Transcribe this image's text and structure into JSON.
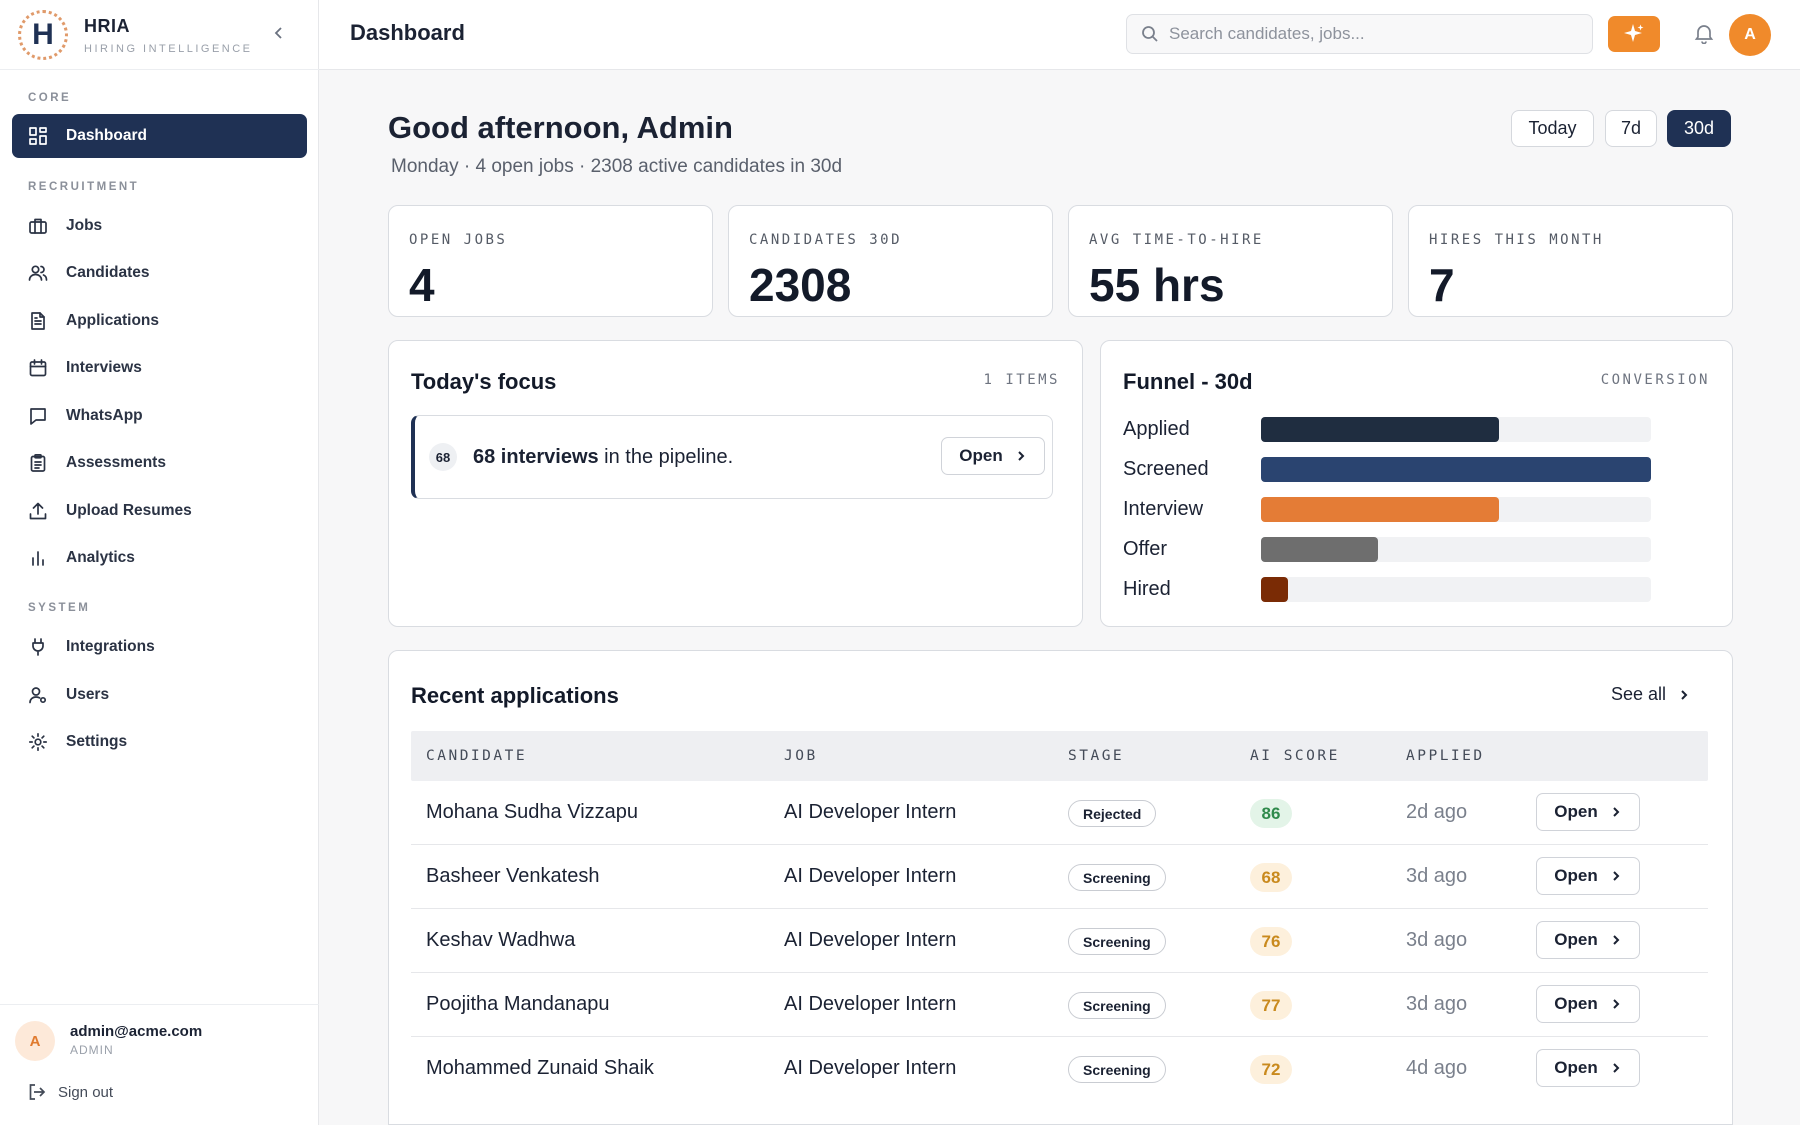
{
  "brand": {
    "logo_letter": "H",
    "title": "HRIA",
    "subtitle": "HIRING INTELLIGENCE"
  },
  "sidebar": {
    "sections": [
      {
        "label": "CORE",
        "items": [
          {
            "label": "Dashboard",
            "icon": "dashboard-icon",
            "active": true
          }
        ]
      },
      {
        "label": "RECRUITMENT",
        "items": [
          {
            "label": "Jobs",
            "icon": "briefcase-icon"
          },
          {
            "label": "Candidates",
            "icon": "users-icon"
          },
          {
            "label": "Applications",
            "icon": "file-icon"
          },
          {
            "label": "Interviews",
            "icon": "calendar-icon"
          },
          {
            "label": "WhatsApp",
            "icon": "chat-icon"
          },
          {
            "label": "Assessments",
            "icon": "clipboard-icon"
          },
          {
            "label": "Upload Resumes",
            "icon": "upload-icon"
          },
          {
            "label": "Analytics",
            "icon": "bar-chart-icon"
          }
        ]
      },
      {
        "label": "SYSTEM",
        "items": [
          {
            "label": "Integrations",
            "icon": "plug-icon"
          },
          {
            "label": "Users",
            "icon": "user-cog-icon"
          },
          {
            "label": "Settings",
            "icon": "gear-icon"
          }
        ]
      }
    ],
    "user": {
      "avatar_letter": "A",
      "email": "admin@acme.com",
      "role": "ADMIN"
    },
    "sign_out_label": "Sign out"
  },
  "header": {
    "title": "Dashboard",
    "search_placeholder": "Search candidates, jobs...",
    "avatar_letter": "A",
    "accent_color": "#f08a2b"
  },
  "main": {
    "greeting": "Good afternoon, Admin",
    "subline": "Monday · 4 open jobs · 2308 active candidates in 30d",
    "ranges": [
      {
        "label": "Today"
      },
      {
        "label": "7d"
      },
      {
        "label": "30d",
        "active": true
      }
    ],
    "stats": [
      {
        "label": "OPEN JOBS",
        "value": "4"
      },
      {
        "label": "CANDIDATES 30D",
        "value": "2308"
      },
      {
        "label": "AVG TIME-TO-HIRE",
        "value": "55 hrs"
      },
      {
        "label": "HIRES THIS MONTH",
        "value": "7"
      }
    ],
    "focus": {
      "title": "Today's focus",
      "meta": "1 ITEMS",
      "item": {
        "badge": "68",
        "bold": "68 interviews",
        "rest": " in the pipeline.",
        "button": "Open"
      }
    },
    "funnel": {
      "title": "Funnel - 30d",
      "meta": "CONVERSION",
      "stages": [
        {
          "label": "Applied",
          "fraction": 0.61,
          "color": "#1f2d40"
        },
        {
          "label": "Screened",
          "fraction": 1.0,
          "color": "#2a4470"
        },
        {
          "label": "Interview",
          "fraction": 0.61,
          "color": "#e47c36"
        },
        {
          "label": "Offer",
          "fraction": 0.3,
          "color": "#6e6e6e"
        },
        {
          "label": "Hired",
          "fraction": 0.07,
          "color": "#7a2b05"
        }
      ]
    },
    "recent": {
      "title": "Recent applications",
      "see_all": "See all",
      "columns": [
        "CANDIDATE",
        "JOB",
        "STAGE",
        "AI SCORE",
        "APPLIED"
      ],
      "rows": [
        {
          "candidate": "Mohana Sudha Vizzapu",
          "job": "AI Developer Intern",
          "stage": "Rejected",
          "score": "86",
          "score_tone": "green",
          "applied": "2d ago",
          "action": "Open"
        },
        {
          "candidate": "Basheer Venkatesh",
          "job": "AI Developer Intern",
          "stage": "Screening",
          "score": "68",
          "score_tone": "amber",
          "applied": "3d ago",
          "action": "Open"
        },
        {
          "candidate": "Keshav Wadhwa",
          "job": "AI Developer Intern",
          "stage": "Screening",
          "score": "76",
          "score_tone": "amber",
          "applied": "3d ago",
          "action": "Open"
        },
        {
          "candidate": "Poojitha Mandanapu",
          "job": "AI Developer Intern",
          "stage": "Screening",
          "score": "77",
          "score_tone": "amber",
          "applied": "3d ago",
          "action": "Open"
        },
        {
          "candidate": "Mohammed Zunaid Shaik",
          "job": "AI Developer Intern",
          "stage": "Screening",
          "score": "72",
          "score_tone": "amber",
          "applied": "4d ago",
          "action": "Open"
        }
      ]
    }
  }
}
